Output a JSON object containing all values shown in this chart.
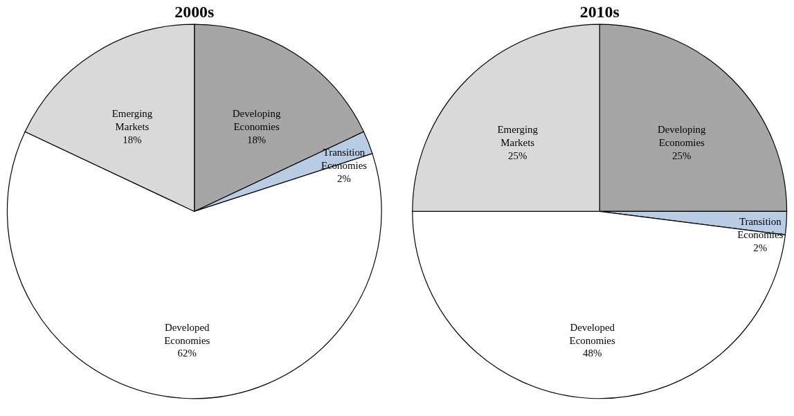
{
  "chart_data": [
    {
      "type": "pie",
      "title": "2000s",
      "categories": [
        "Developing Economies",
        "Transition Economies",
        "Developed Economies",
        "Emerging Markets"
      ],
      "values": [
        18,
        2,
        62,
        18
      ],
      "colors": [
        "#a6a6a6",
        "#b8cce4",
        "#ffffff",
        "#d9d9d9"
      ],
      "value_labels": [
        "18%",
        "2%",
        "62%",
        "18%"
      ]
    },
    {
      "type": "pie",
      "title": "2010s",
      "categories": [
        "Developing Economies",
        "Transition Economies",
        "Developed Economies",
        "Emerging Markets"
      ],
      "values": [
        25,
        2,
        48,
        25
      ],
      "colors": [
        "#a6a6a6",
        "#b8cce4",
        "#ffffff",
        "#d9d9d9"
      ],
      "value_labels": [
        "25%",
        "2%",
        "48%",
        "25%"
      ]
    }
  ]
}
